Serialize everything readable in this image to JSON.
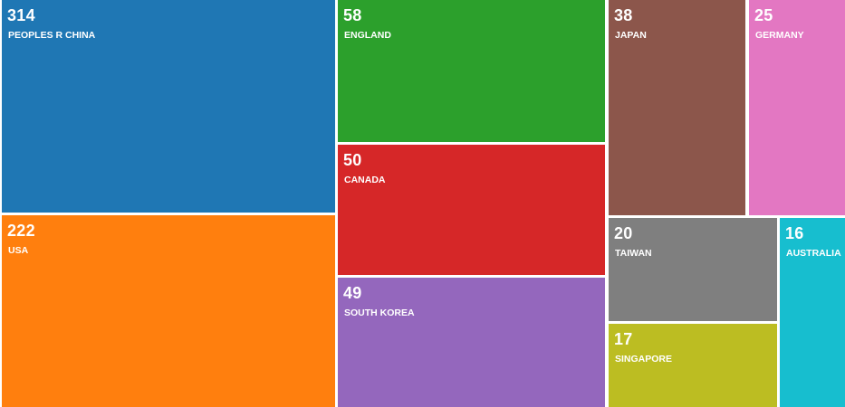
{
  "chart_data": {
    "type": "treemap",
    "items": [
      {
        "name": "PEOPLES R CHINA",
        "value": 314,
        "color": "#1f77b4"
      },
      {
        "name": "USA",
        "value": 222,
        "color": "#ff7f0e"
      },
      {
        "name": "ENGLAND",
        "value": 58,
        "color": "#2ca02c"
      },
      {
        "name": "CANADA",
        "value": 50,
        "color": "#d62728"
      },
      {
        "name": "SOUTH KOREA",
        "value": 49,
        "color": "#9467bd"
      },
      {
        "name": "JAPAN",
        "value": 38,
        "color": "#8c564b"
      },
      {
        "name": "GERMANY",
        "value": 25,
        "color": "#e377c2"
      },
      {
        "name": "TAIWAN",
        "value": 20,
        "color": "#7f7f7f"
      },
      {
        "name": "SINGAPORE",
        "value": 17,
        "color": "#bcbd22"
      },
      {
        "name": "AUSTRALIA",
        "value": 16,
        "color": "#17becf"
      }
    ]
  }
}
